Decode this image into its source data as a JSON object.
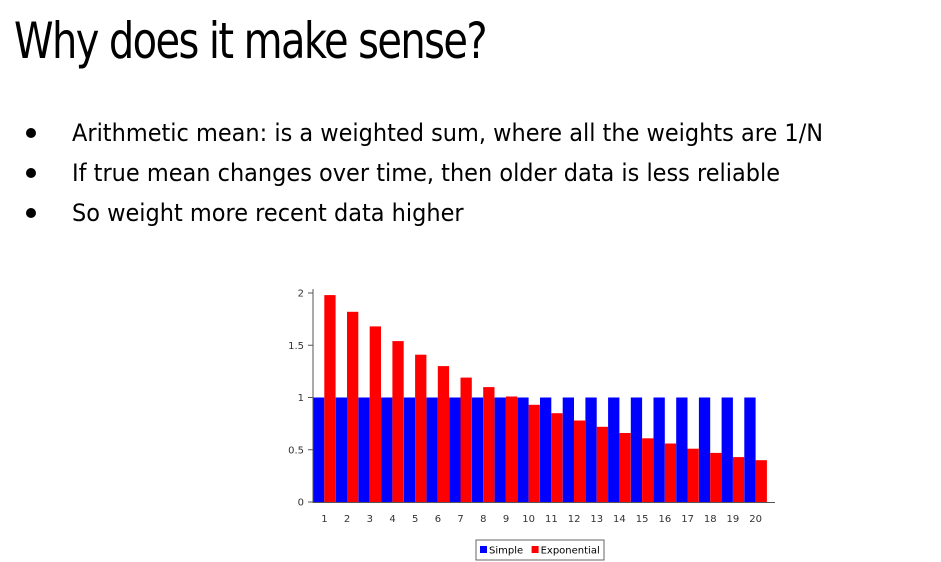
{
  "slide": {
    "title": "Why does it make sense?",
    "bullets": [
      "Arithmetic mean: is a weighted sum, where all the weights are 1/N",
      "If true mean changes over time, then older data is less reliable",
      "So weight more recent data higher"
    ]
  },
  "chart_data": {
    "type": "bar",
    "title": "",
    "xlabel": "",
    "ylabel": "",
    "categories": [
      "1",
      "2",
      "3",
      "4",
      "5",
      "6",
      "7",
      "8",
      "9",
      "10",
      "11",
      "12",
      "13",
      "14",
      "15",
      "16",
      "17",
      "18",
      "19",
      "20"
    ],
    "series": [
      {
        "name": "Simple",
        "color": "#0000ff",
        "values": [
          1,
          1,
          1,
          1,
          1,
          1,
          1,
          1,
          1,
          1,
          1,
          1,
          1,
          1,
          1,
          1,
          1,
          1,
          1,
          1
        ]
      },
      {
        "name": "Exponential",
        "color": "#ff0000",
        "values": [
          1.98,
          1.82,
          1.68,
          1.54,
          1.41,
          1.3,
          1.19,
          1.1,
          1.01,
          0.93,
          0.85,
          0.78,
          0.72,
          0.66,
          0.61,
          0.56,
          0.51,
          0.47,
          0.43,
          0.4
        ]
      }
    ],
    "yticks": [
      "0",
      "0.5",
      "1",
      "1.5",
      "2"
    ],
    "ylim": [
      0,
      2
    ],
    "grid": false,
    "legend": "bottom"
  }
}
